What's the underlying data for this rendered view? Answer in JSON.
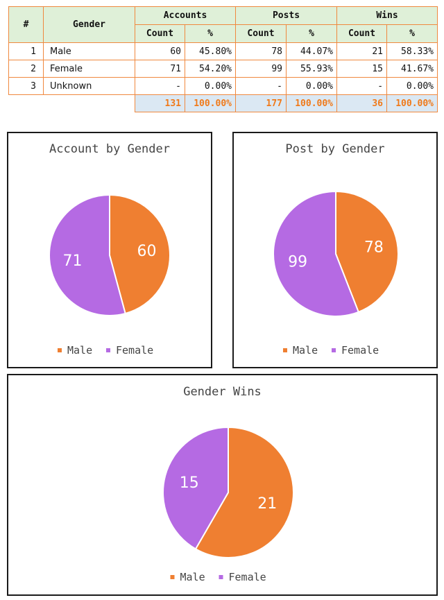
{
  "colors": {
    "male": "#ef7f31",
    "female": "#b56ae3",
    "table_border": "#f0883e",
    "header_bg": "#dff0d8",
    "totals_bg": "#dbe8f3",
    "totals_text": "#f07a1a"
  },
  "table": {
    "headers": {
      "index": "#",
      "gender": "Gender",
      "groups": [
        "Accounts",
        "Posts",
        "Wins"
      ],
      "count": "Count",
      "percent": "%"
    },
    "rows": [
      {
        "index": "1",
        "gender": "Male",
        "accounts_count": "60",
        "accounts_pct": "45.80%",
        "posts_count": "78",
        "posts_pct": "44.07%",
        "wins_count": "21",
        "wins_pct": "58.33%"
      },
      {
        "index": "2",
        "gender": "Female",
        "accounts_count": "71",
        "accounts_pct": "54.20%",
        "posts_count": "99",
        "posts_pct": "55.93%",
        "wins_count": "15",
        "wins_pct": "41.67%"
      },
      {
        "index": "3",
        "gender": "Unknown",
        "accounts_count": "-",
        "accounts_pct": "0.00%",
        "posts_count": "-",
        "posts_pct": "0.00%",
        "wins_count": "-",
        "wins_pct": "0.00%"
      }
    ],
    "totals": {
      "accounts_count": "131",
      "accounts_pct": "100.00%",
      "posts_count": "177",
      "posts_pct": "100.00%",
      "wins_count": "36",
      "wins_pct": "100.00%"
    }
  },
  "chart_data": [
    {
      "type": "pie",
      "title": "Account by Gender",
      "categories": [
        "Male",
        "Female"
      ],
      "values": [
        60,
        71
      ],
      "legend": "bottom"
    },
    {
      "type": "pie",
      "title": "Post by Gender",
      "categories": [
        "Male",
        "Female"
      ],
      "values": [
        78,
        99
      ],
      "legend": "bottom"
    },
    {
      "type": "pie",
      "title": "Gender Wins",
      "categories": [
        "Male",
        "Female"
      ],
      "values": [
        21,
        15
      ],
      "legend": "bottom"
    }
  ]
}
